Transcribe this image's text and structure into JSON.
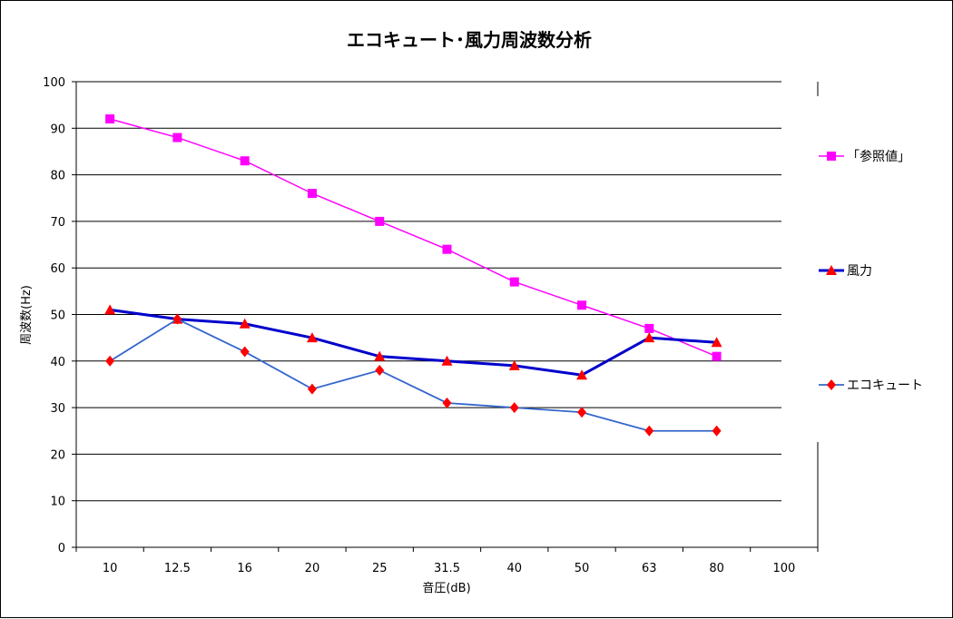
{
  "chart_data": {
    "type": "line",
    "title": "エコキュート･風力周波数分析",
    "xlabel": "音圧(dB)",
    "ylabel": "周波数(Hz)",
    "categories": [
      "10",
      "12.5",
      "16",
      "20",
      "25",
      "31.5",
      "40",
      "50",
      "63",
      "80",
      "100"
    ],
    "ylim": [
      0,
      100
    ],
    "yticks": [
      0,
      10,
      20,
      30,
      40,
      50,
      60,
      70,
      80,
      90,
      100
    ],
    "grid": true,
    "legend_position": "right",
    "series": [
      {
        "name": "「参照値」",
        "values": [
          92,
          88,
          83,
          76,
          70,
          64,
          57,
          52,
          47,
          41,
          null
        ],
        "line_color": "#FF00FF",
        "marker_color": "#FF00FF",
        "marker": "square"
      },
      {
        "name": "風力",
        "values": [
          51,
          49,
          48,
          45,
          41,
          40,
          39,
          37,
          45,
          44,
          null
        ],
        "line_color": "#0000CC",
        "marker_color": "#FF0000",
        "marker": "triangle"
      },
      {
        "name": "エコキュート",
        "values": [
          40,
          49,
          42,
          34,
          38,
          31,
          30,
          29,
          25,
          25,
          null
        ],
        "line_color": "#3366CC",
        "marker_color": "#FF0000",
        "marker": "diamond"
      }
    ]
  }
}
